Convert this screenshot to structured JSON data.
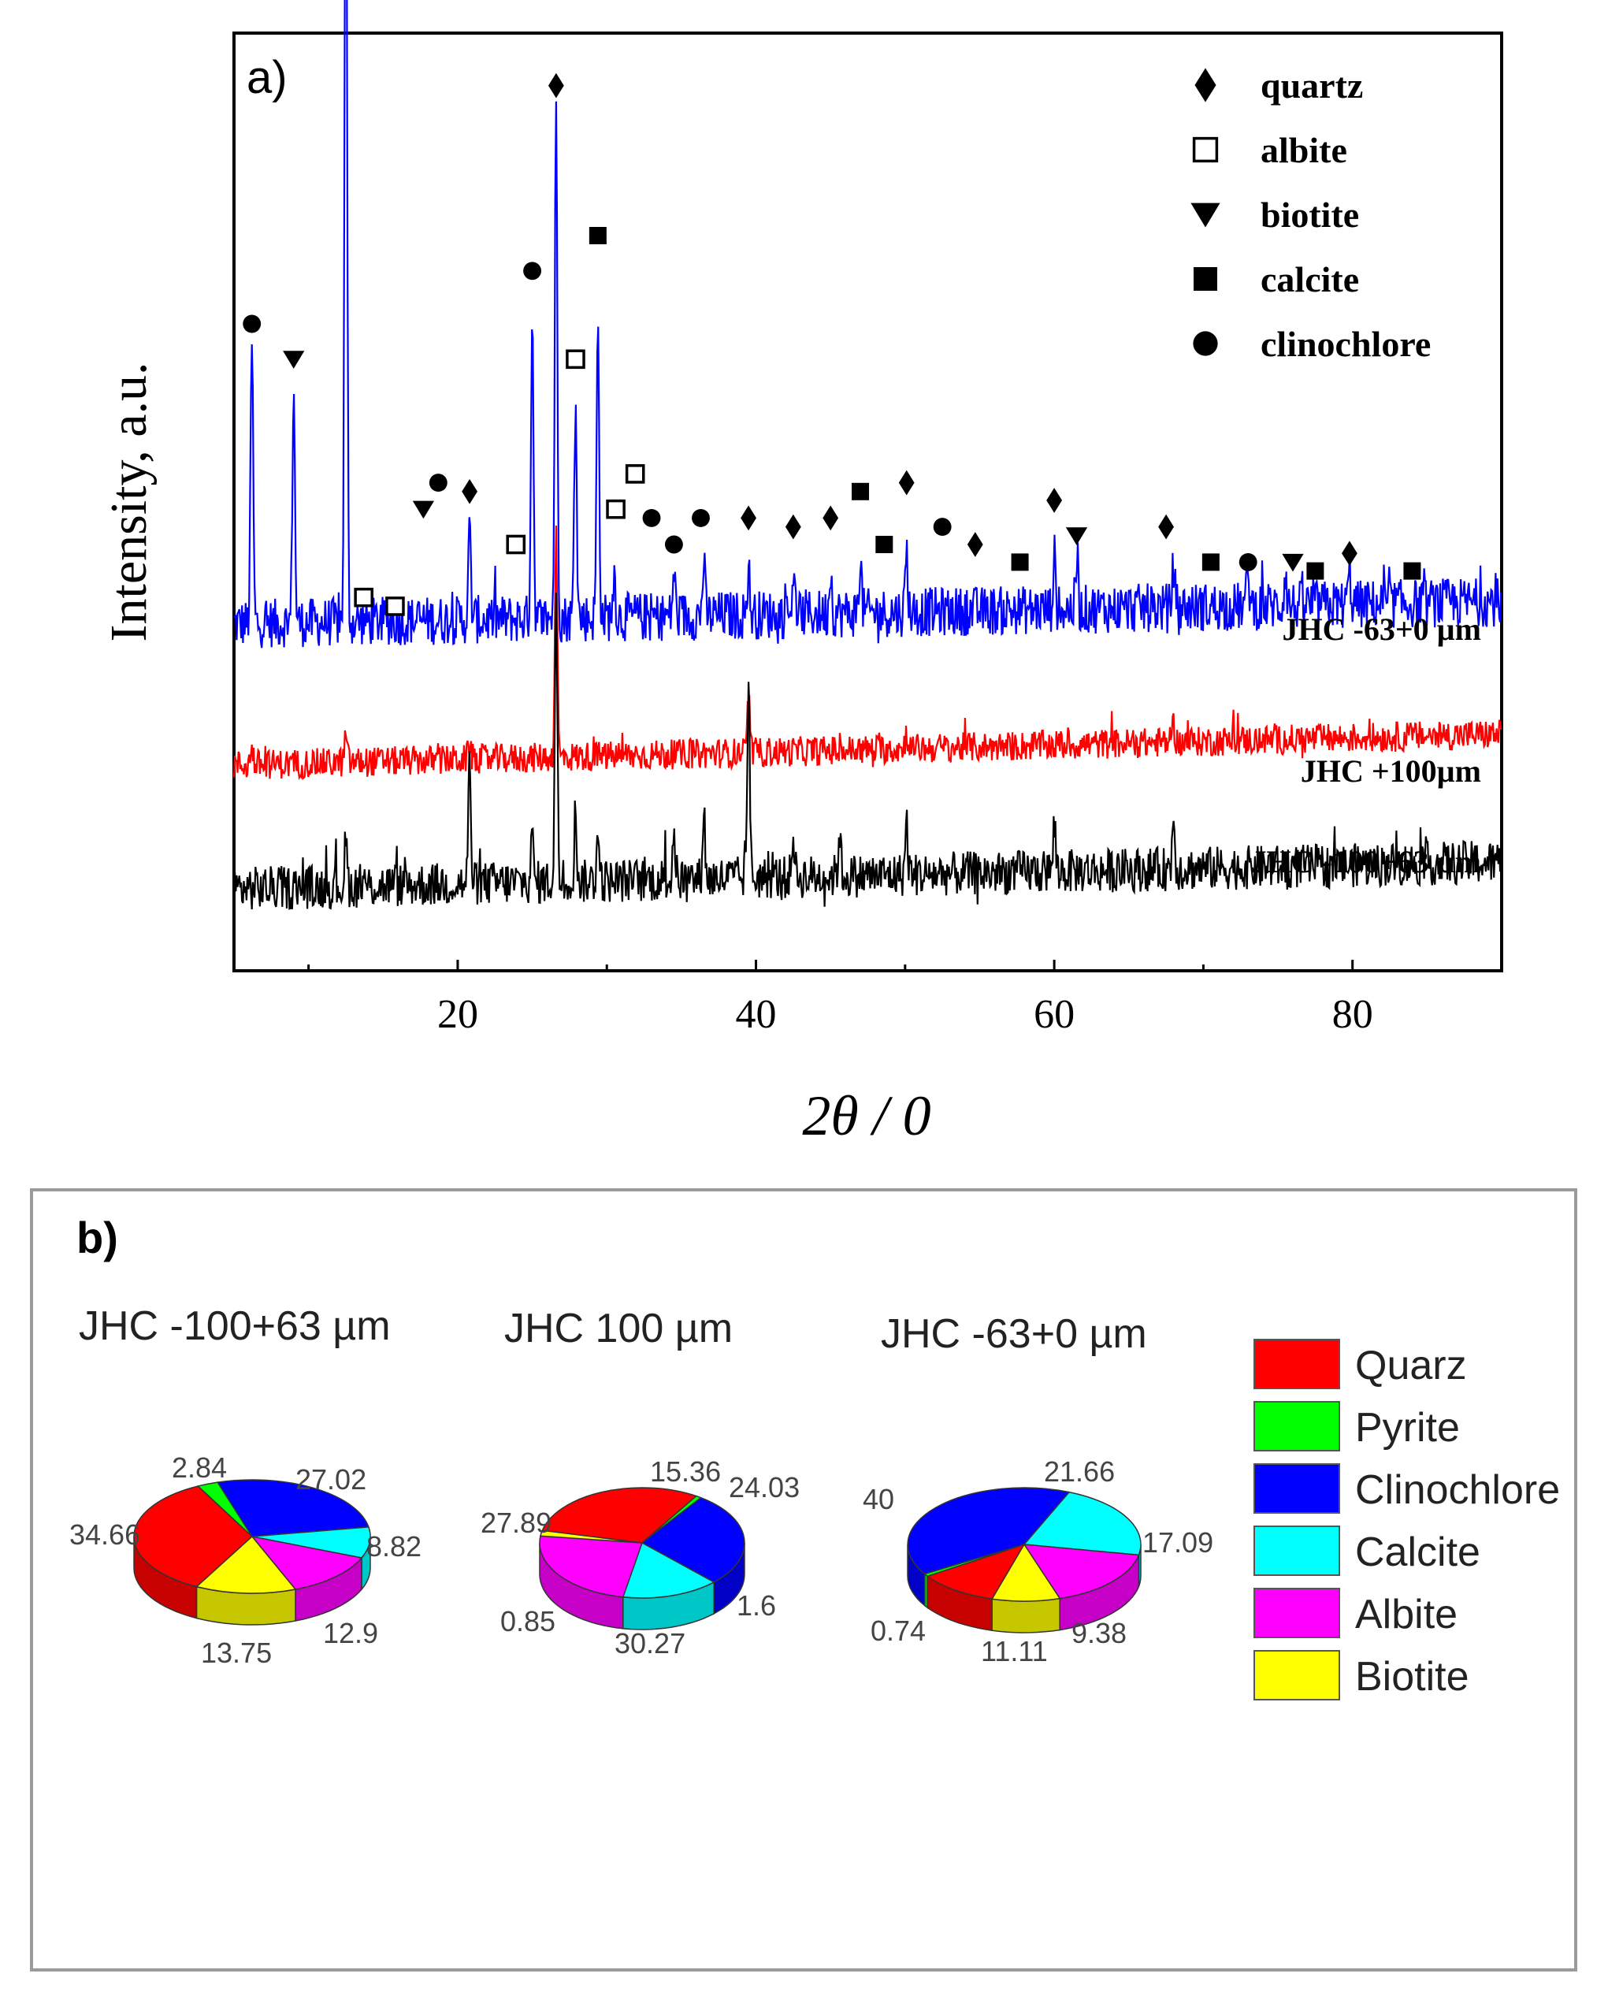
{
  "panel_a": {
    "label": "a)",
    "chart_data": {
      "type": "line",
      "xlabel": "2θ / 0",
      "ylabel": "Intensity, a.u.",
      "xlim": [
        5,
        90
      ],
      "xticks": [
        20,
        40,
        60,
        80
      ],
      "grid": false,
      "legend_position": "top-right",
      "legend": [
        {
          "name": "quartz",
          "marker": "diamond"
        },
        {
          "name": "albite",
          "marker": "open-square"
        },
        {
          "name": "biotite",
          "marker": "down-triangle"
        },
        {
          "name": "calcite",
          "marker": "square"
        },
        {
          "name": "clinochlore",
          "marker": "circle"
        }
      ],
      "series": [
        {
          "name": "JHC -63+0 µm",
          "color": "#0000ff",
          "baseline": 0.36,
          "trend": 0.025,
          "noise": 0.028,
          "peaks": [
            [
              6.2,
              0.32
            ],
            [
              9.0,
              0.27
            ],
            [
              12.5,
              1.0
            ],
            [
              20.8,
              0.1
            ],
            [
              25.0,
              0.35
            ],
            [
              26.6,
              0.58
            ],
            [
              27.9,
              0.25
            ],
            [
              29.4,
              0.33
            ],
            [
              30.5,
              0.05
            ],
            [
              34.5,
              0.05
            ],
            [
              36.5,
              0.06
            ],
            [
              39.5,
              0.05
            ],
            [
              42.5,
              0.05
            ],
            [
              45.0,
              0.05
            ],
            [
              47.0,
              0.06
            ],
            [
              50.1,
              0.07
            ],
            [
              60.0,
              0.06
            ],
            [
              61.5,
              0.05
            ],
            [
              68.0,
              0.05
            ],
            [
              73.0,
              0.04
            ],
            [
              75.5,
              0.04
            ],
            [
              79.8,
              0.04
            ]
          ]
        },
        {
          "name": "JHC +100µm",
          "color": "#ff0000",
          "baseline": 0.2,
          "trend": 0.035,
          "noise": 0.017,
          "peaks": [
            [
              6.2,
              0.02
            ],
            [
              12.5,
              0.03
            ],
            [
              20.8,
              0.02
            ],
            [
              26.6,
              0.25
            ],
            [
              39.5,
              0.06
            ],
            [
              50.1,
              0.02
            ],
            [
              68.0,
              0.02
            ]
          ]
        },
        {
          "name": "JHC -100+63 µm",
          "color": "#000000",
          "baseline": 0.06,
          "trend": 0.03,
          "noise": 0.025,
          "peaks": [
            [
              12.5,
              0.05
            ],
            [
              20.8,
              0.14
            ],
            [
              25.0,
              0.05
            ],
            [
              26.6,
              0.32
            ],
            [
              27.9,
              0.08
            ],
            [
              29.4,
              0.06
            ],
            [
              34.5,
              0.06
            ],
            [
              36.5,
              0.08
            ],
            [
              39.5,
              0.22
            ],
            [
              42.5,
              0.05
            ],
            [
              45.6,
              0.05
            ],
            [
              50.1,
              0.06
            ],
            [
              60.0,
              0.05
            ],
            [
              68.0,
              0.06
            ]
          ]
        }
      ],
      "markers": [
        {
          "type": "circle",
          "x": 12.5,
          "y": 1.12
        },
        {
          "type": "circle",
          "x": 6.2,
          "y": 0.7
        },
        {
          "type": "down-triangle",
          "x": 9.0,
          "y": 0.66
        },
        {
          "type": "open-square",
          "x": 13.7,
          "y": 0.39
        },
        {
          "type": "open-square",
          "x": 15.8,
          "y": 0.38
        },
        {
          "type": "down-triangle",
          "x": 17.7,
          "y": 0.49
        },
        {
          "type": "circle",
          "x": 18.7,
          "y": 0.52
        },
        {
          "type": "diamond",
          "x": 20.8,
          "y": 0.51
        },
        {
          "type": "open-square",
          "x": 23.9,
          "y": 0.45
        },
        {
          "type": "circle",
          "x": 25.0,
          "y": 0.76
        },
        {
          "type": "diamond",
          "x": 26.6,
          "y": 0.97
        },
        {
          "type": "open-square",
          "x": 27.9,
          "y": 0.66
        },
        {
          "type": "square",
          "x": 29.4,
          "y": 0.8
        },
        {
          "type": "open-square",
          "x": 30.6,
          "y": 0.49
        },
        {
          "type": "open-square",
          "x": 31.9,
          "y": 0.53
        },
        {
          "type": "circle",
          "x": 33.0,
          "y": 0.48
        },
        {
          "type": "circle",
          "x": 34.5,
          "y": 0.45
        },
        {
          "type": "circle",
          "x": 36.3,
          "y": 0.48
        },
        {
          "type": "diamond",
          "x": 39.5,
          "y": 0.48
        },
        {
          "type": "diamond",
          "x": 42.5,
          "y": 0.47
        },
        {
          "type": "diamond",
          "x": 45.0,
          "y": 0.48
        },
        {
          "type": "square",
          "x": 47.0,
          "y": 0.51
        },
        {
          "type": "square",
          "x": 48.6,
          "y": 0.45
        },
        {
          "type": "diamond",
          "x": 50.1,
          "y": 0.52
        },
        {
          "type": "circle",
          "x": 52.5,
          "y": 0.47
        },
        {
          "type": "diamond",
          "x": 54.7,
          "y": 0.45
        },
        {
          "type": "square",
          "x": 57.7,
          "y": 0.43
        },
        {
          "type": "diamond",
          "x": 60.0,
          "y": 0.5
        },
        {
          "type": "down-triangle",
          "x": 61.5,
          "y": 0.46
        },
        {
          "type": "diamond",
          "x": 67.5,
          "y": 0.47
        },
        {
          "type": "square",
          "x": 70.5,
          "y": 0.43
        },
        {
          "type": "circle",
          "x": 73.0,
          "y": 0.43
        },
        {
          "type": "down-triangle",
          "x": 76.0,
          "y": 0.43
        },
        {
          "type": "square",
          "x": 77.5,
          "y": 0.42
        },
        {
          "type": "diamond",
          "x": 79.8,
          "y": 0.44
        },
        {
          "type": "square",
          "x": 84.0,
          "y": 0.42
        }
      ]
    }
  },
  "panel_b": {
    "label": "b)",
    "chart_data": [
      {
        "type": "pie",
        "title": "JHC -100+63 µm",
        "slices": [
          {
            "name": "Quarz",
            "value": 34.66,
            "label": "34.66"
          },
          {
            "name": "Pyrite",
            "value": 2.84,
            "label": "2.84"
          },
          {
            "name": "Clinochlore",
            "value": 27.02,
            "label": "27.02"
          },
          {
            "name": "Calcite",
            "value": 8.82,
            "label": "8.82"
          },
          {
            "name": "Albite",
            "value": 12.9,
            "label": "12.9"
          },
          {
            "name": "Biotite",
            "value": 13.75,
            "label": "13.75"
          }
        ]
      },
      {
        "type": "pie",
        "title": "JHC 100 µm",
        "slices": [
          {
            "name": "Quarz",
            "value": 30.27,
            "label": "30.27"
          },
          {
            "name": "Pyrite",
            "value": 0.85,
            "label": "0.85"
          },
          {
            "name": "Clinochlore",
            "value": 27.89,
            "label": "27.89"
          },
          {
            "name": "Calcite",
            "value": 15.36,
            "label": "15.36"
          },
          {
            "name": "Albite",
            "value": 24.03,
            "label": "24.03"
          },
          {
            "name": "Biotite",
            "value": 1.6,
            "label": "1.6"
          }
        ]
      },
      {
        "type": "pie",
        "title": "JHC -63+0 µm",
        "slices": [
          {
            "name": "Quarz",
            "value": 11.11,
            "label": "11.11"
          },
          {
            "name": "Pyrite",
            "value": 0.74,
            "label": "0.74"
          },
          {
            "name": "Clinochlore",
            "value": 40,
            "label": "40"
          },
          {
            "name": "Calcite",
            "value": 21.66,
            "label": "21.66"
          },
          {
            "name": "Albite",
            "value": 17.09,
            "label": "17.09"
          },
          {
            "name": "Biotite",
            "value": 9.38,
            "label": "9.38"
          }
        ]
      }
    ],
    "legend": [
      {
        "name": "Quarz",
        "color": "#ff0000"
      },
      {
        "name": "Pyrite",
        "color": "#00ff00"
      },
      {
        "name": "Clinochlore",
        "color": "#0000ff"
      },
      {
        "name": "Calcite",
        "color": "#00ffff"
      },
      {
        "name": "Albite",
        "color": "#ff00ff"
      },
      {
        "name": "Biotite",
        "color": "#ffff00"
      }
    ]
  }
}
